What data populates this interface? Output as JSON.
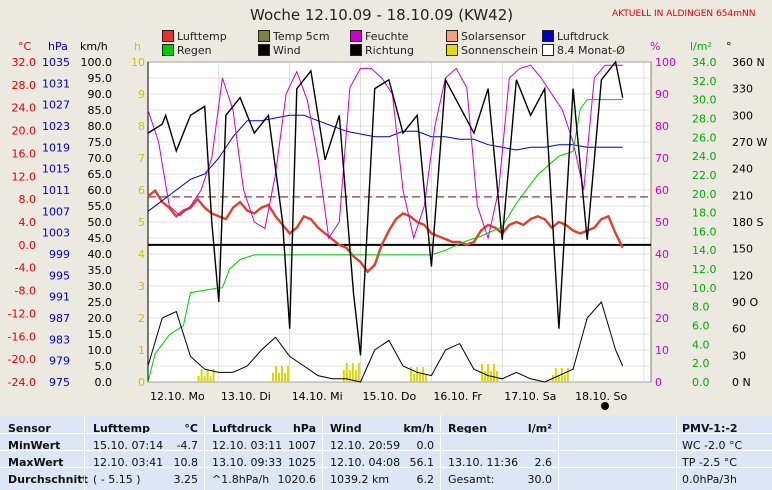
{
  "header": {
    "title": "Woche 12.10.09 - 18.10.09 (KW42)",
    "live": "AKTUELL IN ALDINGEN 654mNN"
  },
  "axis_units": {
    "temp": "°C",
    "press": "hPa",
    "wind": "km/h",
    "h": "h",
    "pct": "%",
    "rain": "l/m²",
    "dir": "°"
  },
  "legend": [
    {
      "label": "Lufttemp",
      "color": "#e83030"
    },
    {
      "label": "Temp 5cm",
      "color": "#808040"
    },
    {
      "label": "Feuchte",
      "color": "#cc00cc"
    },
    {
      "label": "Solarsensor",
      "color": "#f4a080"
    },
    {
      "label": "Luftdruck",
      "color": "#0000c0"
    },
    {
      "label": "Regen",
      "color": "#00cc00"
    },
    {
      "label": "Wind",
      "color": "#000000"
    },
    {
      "label": "Richtung",
      "color": "#000000"
    },
    {
      "label": "Sonnenschein",
      "color": "#e0e000"
    },
    {
      "label": "8.4 Monat-Ø",
      "color": "#ffffff"
    }
  ],
  "chart_data": {
    "type": "line",
    "title": "Woche 12.10.09 - 18.10.09 (KW42)",
    "x_ticks": [
      "12.10. Mo",
      "13.10. Di",
      "14.10. Mi",
      "15.10. Do",
      "16.10. Fr",
      "17.10. Sa",
      "18.10. So"
    ],
    "axes": {
      "temp": {
        "ticks": [
          "32.0",
          "28.0",
          "24.0",
          "20.0",
          "16.0",
          "12.0",
          "8.0",
          "4.0",
          "0.0",
          "-4.0",
          "-8.0",
          "-12.0",
          "-16.0",
          "-20.0",
          "-24.0"
        ],
        "range": [
          -24,
          32
        ]
      },
      "press": {
        "ticks": [
          "1035",
          "1031",
          "1027",
          "1023",
          "1019",
          "1015",
          "1011",
          "1007",
          "1003",
          "999",
          "995",
          "991",
          "987",
          "983",
          "979",
          "975"
        ],
        "range": [
          975,
          1035
        ]
      },
      "wind": {
        "ticks": [
          "100.0",
          "95.0",
          "90.0",
          "85.0",
          "80.0",
          "75.0",
          "70.0",
          "65.0",
          "60.0",
          "55.0",
          "50.0",
          "45.0",
          "40.0",
          "35.0",
          "30.0",
          "25.0",
          "20.0",
          "15.0",
          "10.0",
          "5.0",
          "0.0"
        ],
        "range": [
          0,
          100
        ]
      },
      "h": {
        "ticks": [
          "10",
          "9",
          "8",
          "7",
          "6",
          "5",
          "4",
          "3",
          "2",
          "1",
          "0"
        ],
        "range": [
          0,
          10
        ]
      },
      "pct": {
        "ticks": [
          "100",
          "90",
          "80",
          "70",
          "60",
          "50",
          "40",
          "30",
          "20",
          "10",
          "0"
        ],
        "range": [
          0,
          100
        ]
      },
      "rain": {
        "ticks": [
          "34.0",
          "32.0",
          "30.0",
          "28.0",
          "26.0",
          "24.0",
          "22.0",
          "20.0",
          "18.0",
          "16.0",
          "14.0",
          "12.0",
          "10.0",
          "8.0",
          "6.0",
          "4.0",
          "2.0",
          "0.0"
        ],
        "range": [
          0,
          34
        ]
      },
      "dir": {
        "ticks": [
          "360 N",
          "330",
          "300",
          "270 W",
          "240",
          "210",
          "180 S",
          "150",
          "120",
          "90 O",
          "60",
          "30",
          "0 N"
        ],
        "range": [
          0,
          360
        ]
      }
    },
    "series": [
      {
        "name": "Lufttemp",
        "axis": "temp",
        "color": "#e0402a",
        "x": [
          0,
          0.1,
          0.2,
          0.3,
          0.4,
          0.5,
          0.6,
          0.7,
          0.8,
          0.9,
          1,
          1.1,
          1.2,
          1.3,
          1.4,
          1.5,
          1.6,
          1.7,
          1.8,
          1.9,
          2,
          2.1,
          2.2,
          2.3,
          2.4,
          2.5,
          2.6,
          2.7,
          2.8,
          2.9,
          3,
          3.1,
          3.2,
          3.3,
          3.4,
          3.5,
          3.6,
          3.7,
          3.8,
          3.9,
          4,
          4.1,
          4.2,
          4.3,
          4.4,
          4.5,
          4.6,
          4.7,
          4.8,
          4.9,
          5,
          5.1,
          5.2,
          5.3,
          5.4,
          5.5,
          5.6,
          5.7,
          5.8,
          5.9,
          6,
          6.1,
          6.2,
          6.3,
          6.4,
          6.5,
          6.6,
          6.7
        ],
        "y": [
          8.5,
          9.5,
          7.5,
          6.5,
          5.0,
          6.0,
          6.5,
          8.0,
          6.5,
          5.5,
          5.0,
          4.5,
          6.5,
          7.5,
          6.0,
          5.5,
          6.5,
          7.0,
          5.0,
          3.5,
          2.0,
          3.0,
          5.0,
          4.5,
          3.0,
          2.0,
          1.0,
          0.0,
          -0.5,
          -2.0,
          -3.0,
          -4.7,
          -3.5,
          0.0,
          2.5,
          4.5,
          5.5,
          5.0,
          4.0,
          3.5,
          2.0,
          1.5,
          1.0,
          0.5,
          0.5,
          0.0,
          0.5,
          2.5,
          3.5,
          3.0,
          2.0,
          3.5,
          4.0,
          3.5,
          4.5,
          5.0,
          4.5,
          3.0,
          4.0,
          3.5,
          2.5,
          2.0,
          2.5,
          3.0,
          4.5,
          5.0,
          2.0,
          -0.5
        ]
      },
      {
        "name": "Luftdruck",
        "axis": "press",
        "color": "#0000c0",
        "x": [
          0,
          0.2,
          0.4,
          0.6,
          0.8,
          1,
          1.2,
          1.4,
          1.6,
          1.8,
          2,
          2.2,
          2.4,
          2.6,
          2.8,
          3,
          3.2,
          3.4,
          3.6,
          3.8,
          4,
          4.2,
          4.4,
          4.6,
          4.8,
          5,
          5.2,
          5.4,
          5.6,
          5.8,
          6,
          6.2,
          6.4,
          6.7
        ],
        "y": [
          1007,
          1009,
          1011,
          1013,
          1014,
          1017,
          1021,
          1024,
          1024,
          1024.5,
          1025,
          1025,
          1024,
          1023,
          1022,
          1021.5,
          1021,
          1021,
          1022,
          1022,
          1021,
          1021,
          1020.5,
          1020.5,
          1019.5,
          1019,
          1018.5,
          1019,
          1019,
          1019.5,
          1019.5,
          1019,
          1019,
          1019
        ]
      },
      {
        "name": "Feuchte",
        "axis": "pct",
        "color": "#cc00cc",
        "x": [
          0,
          0.15,
          0.3,
          0.45,
          0.6,
          0.75,
          0.9,
          1.05,
          1.2,
          1.35,
          1.5,
          1.65,
          1.8,
          1.95,
          2.1,
          2.25,
          2.4,
          2.55,
          2.7,
          2.85,
          3,
          3.15,
          3.3,
          3.45,
          3.6,
          3.75,
          3.9,
          4.05,
          4.2,
          4.35,
          4.5,
          4.65,
          4.8,
          4.95,
          5.1,
          5.25,
          5.4,
          5.55,
          5.7,
          5.85,
          6,
          6.15,
          6.3,
          6.45,
          6.6,
          6.7
        ],
        "y": [
          85,
          75,
          55,
          52,
          55,
          60,
          70,
          95,
          85,
          60,
          50,
          48,
          65,
          90,
          97,
          88,
          70,
          45,
          50,
          92,
          98,
          98,
          95,
          90,
          60,
          45,
          55,
          80,
          95,
          98,
          92,
          55,
          45,
          60,
          95,
          98,
          99,
          95,
          90,
          85,
          75,
          60,
          95,
          99,
          99,
          99
        ]
      },
      {
        "name": "Regen",
        "axis": "rain",
        "color": "#00cc00",
        "x": [
          0,
          0.1,
          0.2,
          0.3,
          0.4,
          0.5,
          0.6,
          1,
          1.05,
          1.15,
          1.3,
          1.5,
          2,
          2.5,
          3,
          3.5,
          4,
          4.2,
          4.5,
          4.7,
          5,
          5.2,
          5.5,
          5.8,
          6,
          6.1,
          6.2,
          6.3,
          6.5,
          6.7
        ],
        "y": [
          0,
          3,
          4,
          5,
          5.5,
          6,
          9.5,
          10,
          10,
          12,
          13,
          13.5,
          13.5,
          13.5,
          13.5,
          13.5,
          13.5,
          14,
          15,
          15.5,
          16.5,
          19,
          22,
          24,
          24.5,
          29,
          30,
          30,
          30,
          30
        ]
      },
      {
        "name": "Wind",
        "axis": "wind",
        "color": "#000000",
        "x": [
          0,
          0.2,
          0.4,
          0.6,
          0.8,
          1,
          1.2,
          1.4,
          1.6,
          1.8,
          2,
          2.2,
          2.4,
          2.6,
          2.8,
          3,
          3.2,
          3.4,
          3.6,
          3.8,
          4,
          4.2,
          4.4,
          4.6,
          4.8,
          5,
          5.2,
          5.4,
          5.6,
          5.8,
          6,
          6.2,
          6.4,
          6.6,
          6.7
        ],
        "y": [
          5,
          20,
          22,
          8,
          4,
          3,
          3,
          5,
          10,
          14,
          8,
          5,
          2,
          1,
          1,
          0,
          10,
          13,
          5,
          3,
          2,
          10,
          12,
          4,
          2,
          1,
          3,
          1,
          0,
          2,
          4,
          20,
          25,
          10,
          5
        ]
      },
      {
        "name": "Richtung",
        "axis": "dir",
        "color": "#000000",
        "x": [
          0,
          0.2,
          0.25,
          0.4,
          0.6,
          0.8,
          0.9,
          1.0,
          1.1,
          1.3,
          1.5,
          1.7,
          1.9,
          2.0,
          2.1,
          2.3,
          2.5,
          2.7,
          2.9,
          3.0,
          3.2,
          3.4,
          3.6,
          3.8,
          4.0,
          4.2,
          4.4,
          4.6,
          4.8,
          5.0,
          5.2,
          5.4,
          5.6,
          5.8,
          6.0,
          6.2,
          6.4,
          6.6,
          6.7
        ],
        "y": [
          280,
          290,
          300,
          260,
          300,
          310,
          180,
          90,
          300,
          320,
          280,
          300,
          180,
          60,
          330,
          350,
          250,
          300,
          100,
          30,
          330,
          340,
          280,
          300,
          130,
          340,
          310,
          280,
          330,
          160,
          340,
          300,
          330,
          60,
          330,
          160,
          340,
          360,
          320
        ]
      }
    ],
    "sunshine_days": [
      0.7,
      1.75,
      2.75,
      3.7,
      4.7,
      5.7
    ]
  },
  "table": {
    "columns": [
      {
        "header": "Sensor",
        "unit": "",
        "rows": [
          "MinWert",
          "MaxWert",
          "Durchschnitt"
        ]
      },
      {
        "header": "Lufttemp",
        "unit": "°C",
        "rows": [
          "15.10.  07:14",
          "12.10.  03:41",
          "( - 5.15 )"
        ],
        "vals": [
          "-4.7",
          "10.8",
          "3.25"
        ]
      },
      {
        "header": "Luftdruck",
        "unit": "hPa",
        "rows": [
          "12.10.  03:11",
          "13.10.  09:33",
          "^1.8hPa/h"
        ],
        "vals": [
          "1007",
          "1025",
          "1020.6"
        ]
      },
      {
        "header": "Wind",
        "unit": "km/h",
        "rows": [
          "12.10.  20:59",
          "12.10.  04:08",
          "1039.2 km"
        ],
        "vals": [
          "0.0",
          "56.1",
          "6.2"
        ]
      },
      {
        "header": "Regen",
        "unit": "l/m²",
        "rows": [
          "",
          "13.10.  11:36",
          "Gesamt:"
        ],
        "vals": [
          "",
          "2.6",
          "30.0"
        ]
      },
      {
        "header": "PMV-1:-2",
        "unit": "",
        "rows": [
          "WC -2.0 °C",
          "TP -2.5 °C",
          "0.0hPa/3h"
        ]
      }
    ]
  }
}
